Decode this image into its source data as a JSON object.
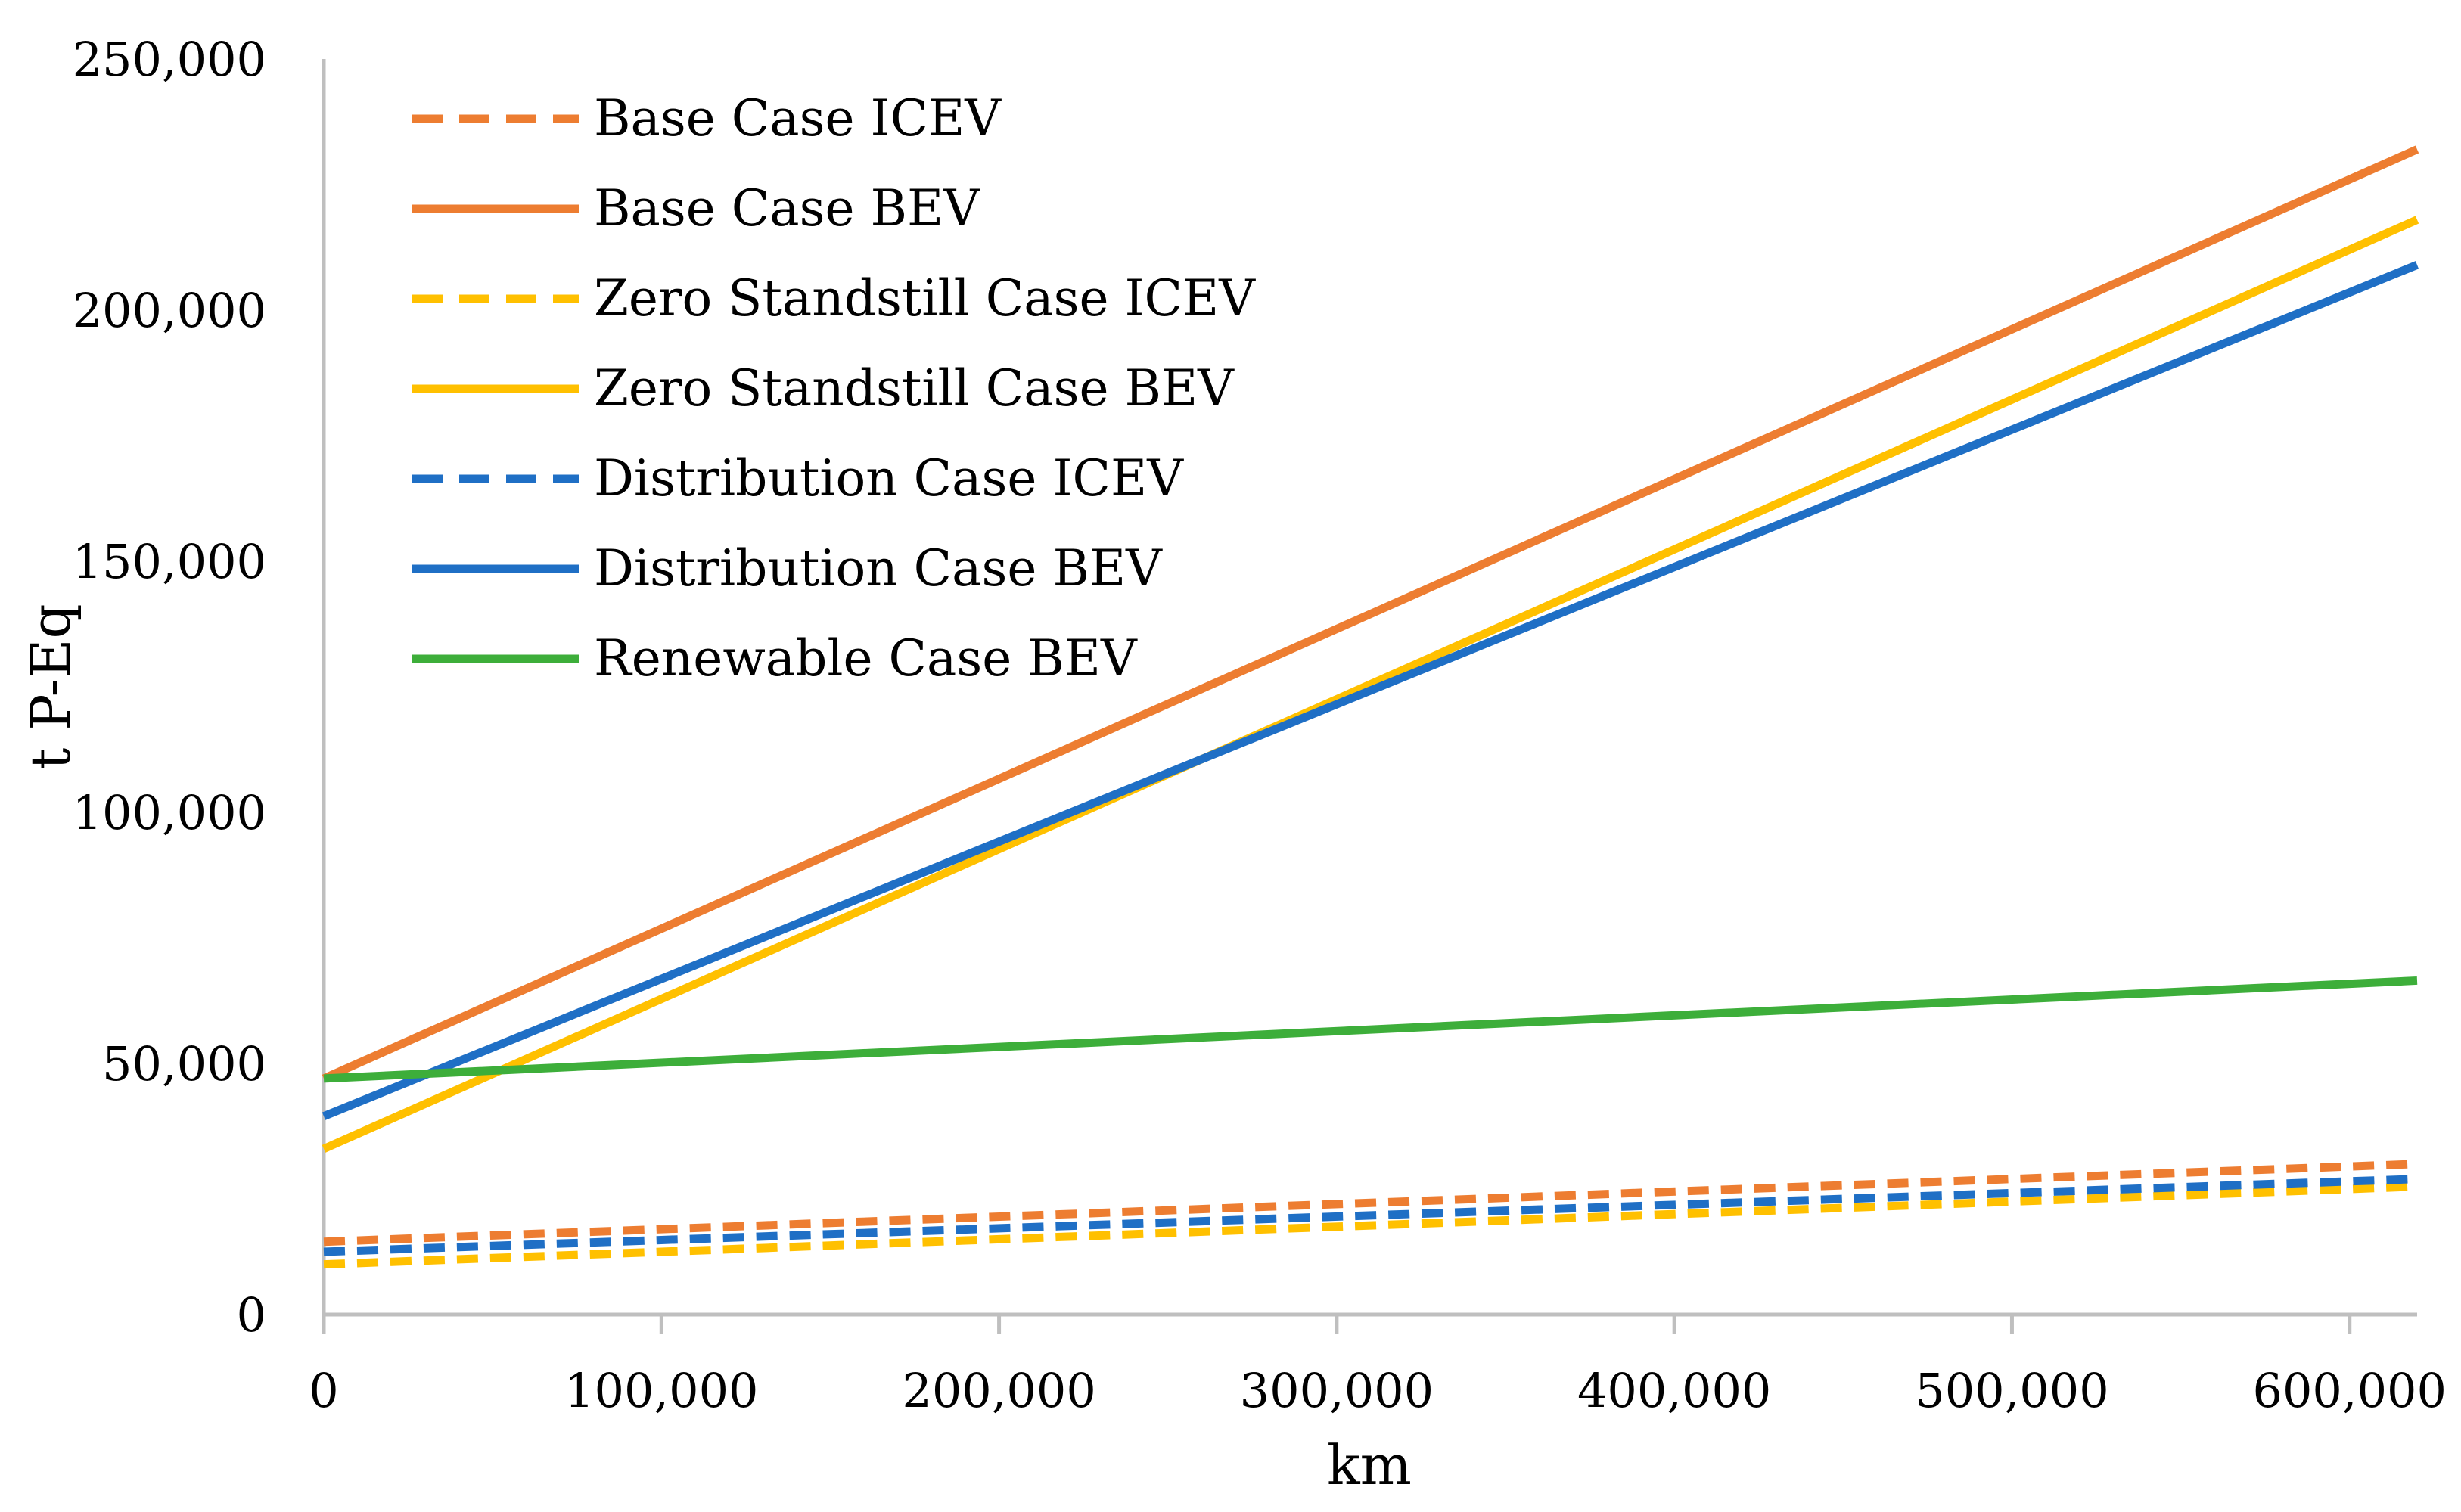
{
  "chart_data": {
    "type": "line",
    "title": "",
    "xlabel": "km",
    "ylabel": "t P-Eq",
    "xlim": [
      0,
      620000
    ],
    "ylim": [
      0,
      250000
    ],
    "x_ticks": [
      0,
      100000,
      200000,
      300000,
      400000,
      500000,
      600000
    ],
    "y_ticks": [
      0,
      50000,
      100000,
      150000,
      200000,
      250000
    ],
    "x_tick_labels": [
      "0",
      "100,000",
      "200,000",
      "300,000",
      "400,000",
      "500,000",
      "600,000"
    ],
    "y_tick_labels": [
      "0",
      "50,000",
      "100,000",
      "150,000",
      "200,000",
      "250,000"
    ],
    "grid": false,
    "legend_position": "top-left",
    "series": [
      {
        "name": "Base Case ICEV",
        "color": "#ED7D31",
        "dashed": true,
        "x": [
          0,
          620000
        ],
        "y": [
          14500,
          30000
        ]
      },
      {
        "name": "Base Case BEV",
        "color": "#ED7D31",
        "dashed": false,
        "x": [
          0,
          620000
        ],
        "y": [
          47000,
          232000
        ]
      },
      {
        "name": "Zero Standstill Case ICEV",
        "color": "#FFC000",
        "dashed": true,
        "x": [
          0,
          620000
        ],
        "y": [
          10000,
          25500
        ]
      },
      {
        "name": "Zero Standstill Case BEV",
        "color": "#FFC000",
        "dashed": false,
        "x": [
          0,
          620000
        ],
        "y": [
          33000,
          218000
        ]
      },
      {
        "name": "Distribution Case ICEV",
        "color": "#1F6FC5",
        "dashed": true,
        "x": [
          0,
          620000
        ],
        "y": [
          12500,
          27000
        ]
      },
      {
        "name": "Distribution Case BEV",
        "color": "#1F6FC5",
        "dashed": false,
        "x": [
          0,
          620000
        ],
        "y": [
          39500,
          209000
        ]
      },
      {
        "name": "Renewable Case BEV",
        "color": "#3DAE3A",
        "dashed": false,
        "x": [
          0,
          620000
        ],
        "y": [
          47000,
          66500
        ]
      }
    ]
  }
}
